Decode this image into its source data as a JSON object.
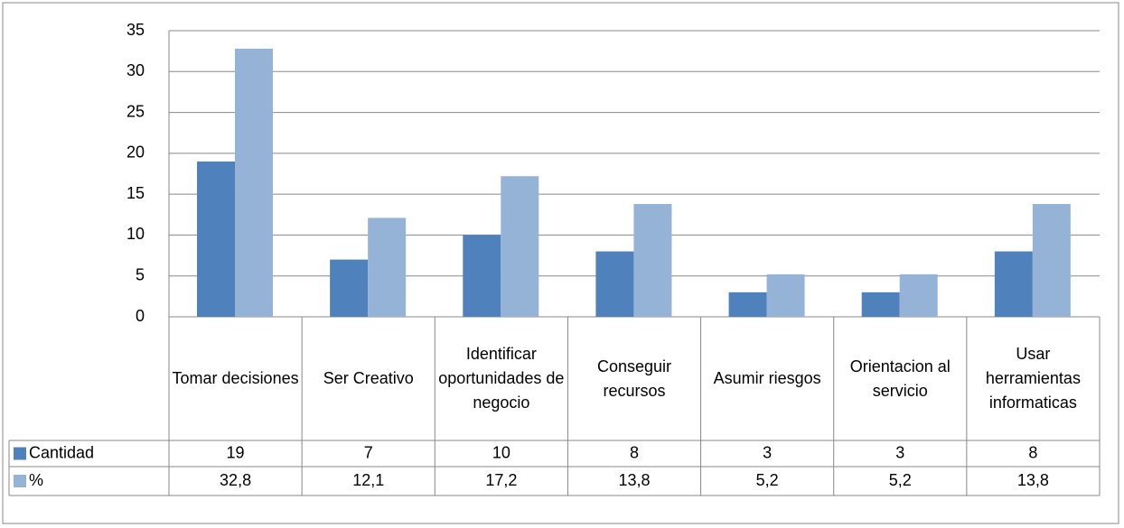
{
  "chart_data": {
    "type": "bar",
    "categories": [
      "Tomar decisiones",
      "Ser Creativo",
      "Identificar oportunidades de negocio",
      "Conseguir recursos",
      "Asumir riesgos",
      "Orientacion al servicio",
      "Usar herramientas informaticas"
    ],
    "series": [
      {
        "name": "Cantidad",
        "color": "#4f81bd",
        "values": [
          19,
          7,
          10,
          8,
          3,
          3,
          8
        ]
      },
      {
        "name": "%",
        "color": "#95b3d7",
        "values": [
          32.8,
          12.1,
          17.2,
          13.8,
          5.2,
          5.2,
          13.8
        ],
        "value_labels": [
          "32,8",
          "12,1",
          "17,2",
          "13,8",
          "5,2",
          "5,2",
          "13,8"
        ]
      }
    ],
    "ylim": [
      0,
      35
    ],
    "yticks": [
      0,
      5,
      10,
      15,
      20,
      25,
      30,
      35
    ],
    "grid": true
  }
}
